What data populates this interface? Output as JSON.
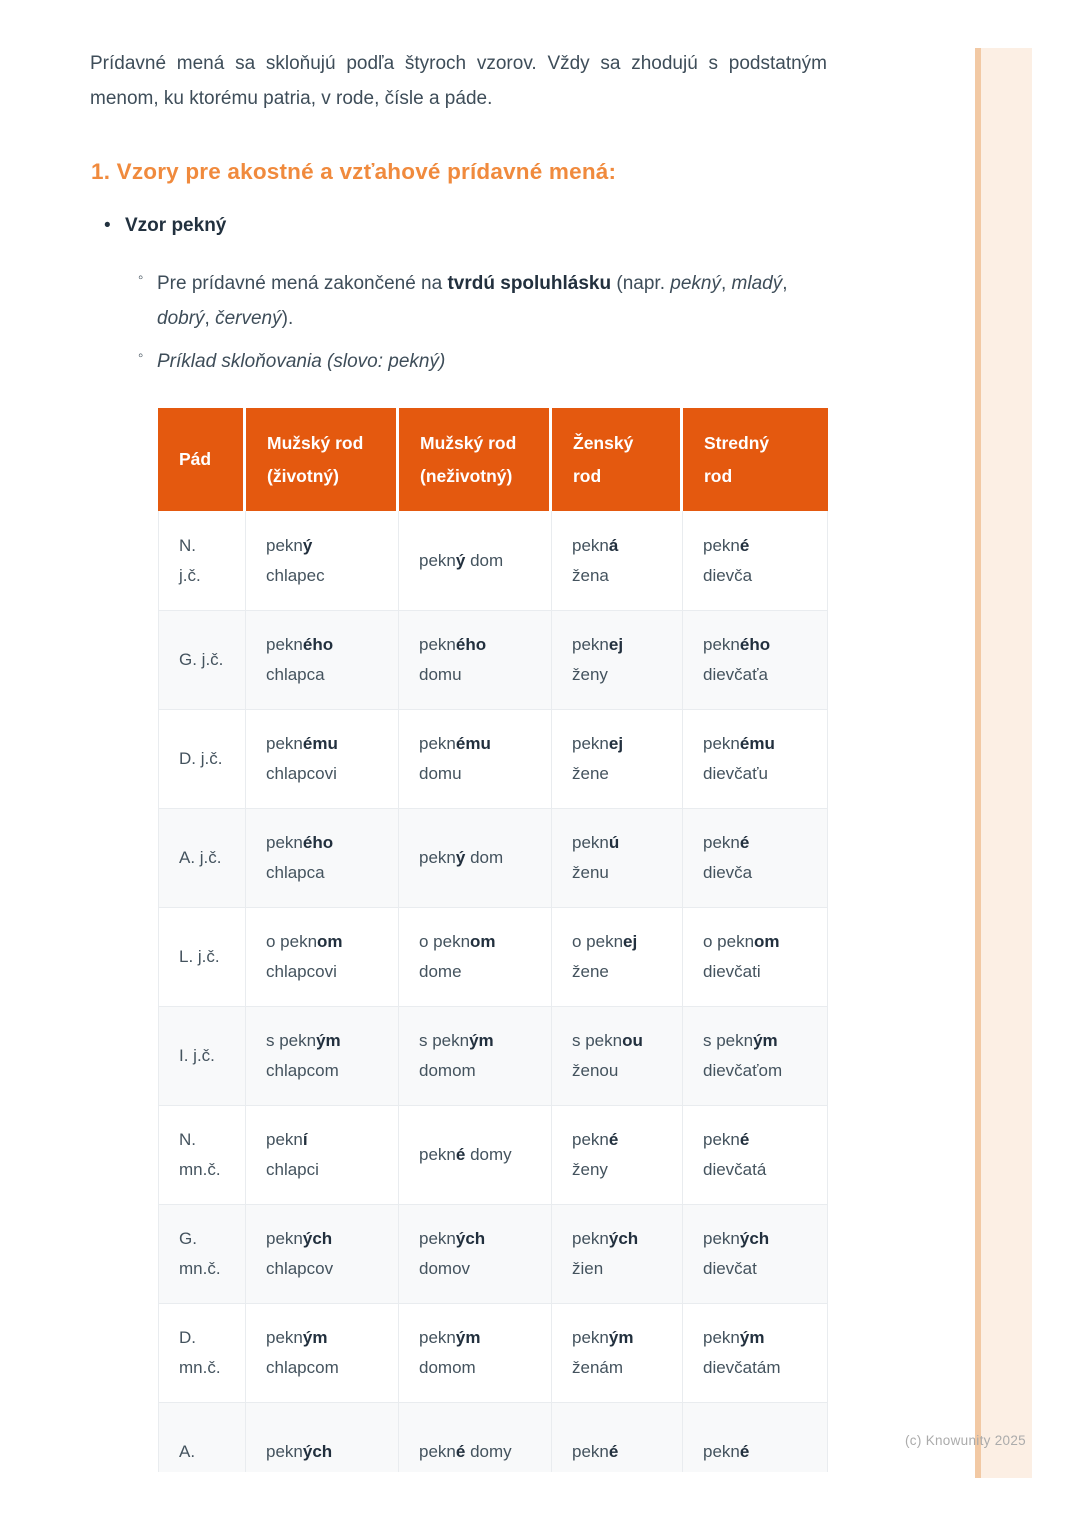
{
  "colors": {
    "accent": "#E4590F",
    "heading_orange": "#F08A3D",
    "stripe_fill": "#FCEFE4",
    "stripe_edge": "#F2C9A4"
  },
  "intro": {
    "line1": "Prídavné mená sa skloňujú podľa štyroch vzorov. Vždy sa zhodujú s podstatným",
    "line2": "menom, ku ktorému patria, v rode, čísle a páde."
  },
  "heading": "1. Vzory pre akostné a vzťahové prídavné mená:",
  "bullets": {
    "vzor": {
      "marker": "•",
      "label": "Vzor pekný"
    },
    "sub1": {
      "marker": "◦",
      "lines": [
        [
          {
            "t": "Pre prídavné mená zakončené na "
          },
          {
            "t": "tvrdú spoluhlásku",
            "b": true
          },
          {
            "t": " (napr. "
          },
          {
            "t": "pekný",
            "i": true
          },
          {
            "t": ", "
          },
          {
            "t": "mladý",
            "i": true
          },
          {
            "t": ","
          }
        ],
        [
          {
            "t": "dobrý",
            "i": true
          },
          {
            "t": ", "
          },
          {
            "t": "červený",
            "i": true
          },
          {
            "t": ")."
          }
        ]
      ]
    },
    "sub2": {
      "marker": "◦",
      "lines": [
        [
          {
            "t": "Príklad skloňovania (slovo: pekný)",
            "i": true
          }
        ]
      ]
    }
  },
  "table": {
    "columns": [
      {
        "lines": [
          "Pád"
        ]
      },
      {
        "lines": [
          "Mužský rod",
          "(životný)"
        ]
      },
      {
        "lines": [
          "Mužský rod",
          "(neživotný)"
        ]
      },
      {
        "lines": [
          "Ženský",
          "rod"
        ]
      },
      {
        "lines": [
          "Stredný",
          "rod"
        ]
      }
    ],
    "rows": [
      {
        "case": [
          "N.",
          "j.č."
        ],
        "cells": [
          [
            [
              {
                "t": "pekn"
              },
              {
                "t": "ý",
                "b": true
              }
            ],
            [
              {
                "t": "chlapec"
              }
            ]
          ],
          [
            [
              {
                "t": "pekn"
              },
              {
                "t": "ý",
                "b": true
              },
              {
                "t": " dom"
              }
            ]
          ],
          [
            [
              {
                "t": "pekn"
              },
              {
                "t": "á",
                "b": true
              }
            ],
            [
              {
                "t": "žena"
              }
            ]
          ],
          [
            [
              {
                "t": "pekn"
              },
              {
                "t": "é",
                "b": true
              }
            ],
            [
              {
                "t": "dievča"
              }
            ]
          ]
        ]
      },
      {
        "case": [
          "G. j.č."
        ],
        "cells": [
          [
            [
              {
                "t": "pekn"
              },
              {
                "t": "ého",
                "b": true
              }
            ],
            [
              {
                "t": "chlapca"
              }
            ]
          ],
          [
            [
              {
                "t": "pekn"
              },
              {
                "t": "ého",
                "b": true
              }
            ],
            [
              {
                "t": "domu"
              }
            ]
          ],
          [
            [
              {
                "t": "pekn"
              },
              {
                "t": "ej",
                "b": true
              }
            ],
            [
              {
                "t": "ženy"
              }
            ]
          ],
          [
            [
              {
                "t": "pekn"
              },
              {
                "t": "ého",
                "b": true
              }
            ],
            [
              {
                "t": "dievčaťa"
              }
            ]
          ]
        ]
      },
      {
        "case": [
          "D. j.č."
        ],
        "cells": [
          [
            [
              {
                "t": "pekn"
              },
              {
                "t": "ému",
                "b": true
              }
            ],
            [
              {
                "t": "chlapcovi"
              }
            ]
          ],
          [
            [
              {
                "t": "pekn"
              },
              {
                "t": "ému",
                "b": true
              }
            ],
            [
              {
                "t": "domu"
              }
            ]
          ],
          [
            [
              {
                "t": "pekn"
              },
              {
                "t": "ej",
                "b": true
              }
            ],
            [
              {
                "t": "žene"
              }
            ]
          ],
          [
            [
              {
                "t": "pekn"
              },
              {
                "t": "ému",
                "b": true
              }
            ],
            [
              {
                "t": "dievčaťu"
              }
            ]
          ]
        ]
      },
      {
        "case": [
          "A. j.č."
        ],
        "cells": [
          [
            [
              {
                "t": "pekn"
              },
              {
                "t": "ého",
                "b": true
              }
            ],
            [
              {
                "t": "chlapca"
              }
            ]
          ],
          [
            [
              {
                "t": "pekn"
              },
              {
                "t": "ý",
                "b": true
              },
              {
                "t": " dom"
              }
            ]
          ],
          [
            [
              {
                "t": "pekn"
              },
              {
                "t": "ú",
                "b": true
              }
            ],
            [
              {
                "t": "ženu"
              }
            ]
          ],
          [
            [
              {
                "t": "pekn"
              },
              {
                "t": "é",
                "b": true
              }
            ],
            [
              {
                "t": "dievča"
              }
            ]
          ]
        ]
      },
      {
        "case": [
          "L. j.č."
        ],
        "cells": [
          [
            [
              {
                "t": "o pekn"
              },
              {
                "t": "om",
                "b": true
              }
            ],
            [
              {
                "t": "chlapcovi"
              }
            ]
          ],
          [
            [
              {
                "t": "o pekn"
              },
              {
                "t": "om",
                "b": true
              }
            ],
            [
              {
                "t": "dome"
              }
            ]
          ],
          [
            [
              {
                "t": "o pekn"
              },
              {
                "t": "ej",
                "b": true
              }
            ],
            [
              {
                "t": "žene"
              }
            ]
          ],
          [
            [
              {
                "t": "o pekn"
              },
              {
                "t": "om",
                "b": true
              }
            ],
            [
              {
                "t": "dievčati"
              }
            ]
          ]
        ]
      },
      {
        "case": [
          "I. j.č."
        ],
        "cells": [
          [
            [
              {
                "t": "s pekn"
              },
              {
                "t": "ým",
                "b": true
              }
            ],
            [
              {
                "t": "chlapcom"
              }
            ]
          ],
          [
            [
              {
                "t": "s pekn"
              },
              {
                "t": "ým",
                "b": true
              }
            ],
            [
              {
                "t": "domom"
              }
            ]
          ],
          [
            [
              {
                "t": "s pekn"
              },
              {
                "t": "ou",
                "b": true
              }
            ],
            [
              {
                "t": "ženou"
              }
            ]
          ],
          [
            [
              {
                "t": "s pekn"
              },
              {
                "t": "ým",
                "b": true
              }
            ],
            [
              {
                "t": "dievčaťom"
              }
            ]
          ]
        ]
      },
      {
        "case": [
          "N.",
          "mn.č."
        ],
        "cells": [
          [
            [
              {
                "t": "pekn"
              },
              {
                "t": "í",
                "b": true
              }
            ],
            [
              {
                "t": "chlapci"
              }
            ]
          ],
          [
            [
              {
                "t": "pekn"
              },
              {
                "t": "é",
                "b": true
              },
              {
                "t": " domy"
              }
            ]
          ],
          [
            [
              {
                "t": "pekn"
              },
              {
                "t": "é",
                "b": true
              }
            ],
            [
              {
                "t": "ženy"
              }
            ]
          ],
          [
            [
              {
                "t": "pekn"
              },
              {
                "t": "é",
                "b": true
              }
            ],
            [
              {
                "t": "dievčatá"
              }
            ]
          ]
        ]
      },
      {
        "case": [
          "G.",
          "mn.č."
        ],
        "cells": [
          [
            [
              {
                "t": "pekn"
              },
              {
                "t": "ých",
                "b": true
              }
            ],
            [
              {
                "t": "chlapcov"
              }
            ]
          ],
          [
            [
              {
                "t": "pekn"
              },
              {
                "t": "ých",
                "b": true
              }
            ],
            [
              {
                "t": "domov"
              }
            ]
          ],
          [
            [
              {
                "t": "pekn"
              },
              {
                "t": "ých",
                "b": true
              }
            ],
            [
              {
                "t": "žien"
              }
            ]
          ],
          [
            [
              {
                "t": "pekn"
              },
              {
                "t": "ých",
                "b": true
              }
            ],
            [
              {
                "t": "dievčat"
              }
            ]
          ]
        ]
      },
      {
        "case": [
          "D.",
          "mn.č."
        ],
        "cells": [
          [
            [
              {
                "t": "pekn"
              },
              {
                "t": "ým",
                "b": true
              }
            ],
            [
              {
                "t": "chlapcom"
              }
            ]
          ],
          [
            [
              {
                "t": "pekn"
              },
              {
                "t": "ým",
                "b": true
              }
            ],
            [
              {
                "t": "domom"
              }
            ]
          ],
          [
            [
              {
                "t": "pekn"
              },
              {
                "t": "ým",
                "b": true
              }
            ],
            [
              {
                "t": "ženám"
              }
            ]
          ],
          [
            [
              {
                "t": "pekn"
              },
              {
                "t": "ým",
                "b": true
              }
            ],
            [
              {
                "t": "dievčatám"
              }
            ]
          ]
        ]
      },
      {
        "case": [
          "A."
        ],
        "cells": [
          [
            [
              {
                "t": "pekn"
              },
              {
                "t": "ých",
                "b": true
              }
            ]
          ],
          [
            [
              {
                "t": "pekn"
              },
              {
                "t": "é",
                "b": true
              },
              {
                "t": " domy"
              }
            ]
          ],
          [
            [
              {
                "t": "pekn"
              },
              {
                "t": "é",
                "b": true
              }
            ]
          ],
          [
            [
              {
                "t": "pekn"
              },
              {
                "t": "é",
                "b": true
              }
            ]
          ]
        ]
      }
    ]
  },
  "footer": {
    "copyright": "(c) Knowunity 2025"
  }
}
